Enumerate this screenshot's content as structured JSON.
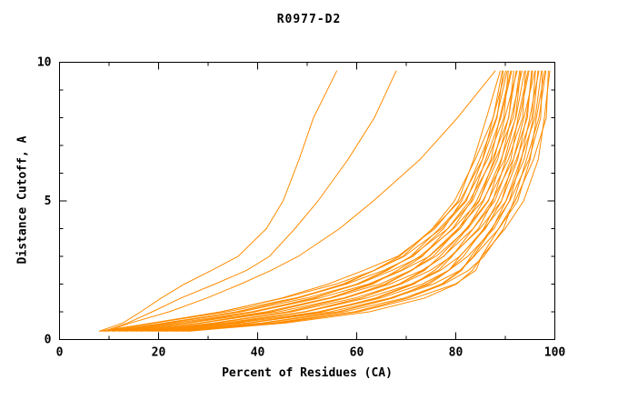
{
  "header": {
    "title": "R0977-D2"
  },
  "chart_data": {
    "type": "line",
    "title": "R0977-D2",
    "xlabel": "Percent of Residues (CA)",
    "ylabel": "Distance Cutoff, A",
    "xlim": [
      0,
      100
    ],
    "ylim": [
      0,
      10
    ],
    "x_major_ticks": [
      0,
      20,
      40,
      60,
      80,
      100
    ],
    "x_minor_ticks": [
      10,
      30,
      50,
      70,
      90
    ],
    "y_major_ticks": [
      0,
      5,
      10
    ],
    "y_minor_ticks": [
      1,
      2,
      3,
      4,
      6,
      7,
      8,
      9
    ],
    "grid": false,
    "legend_position": "none",
    "line_color": "#ff8c00",
    "frame_color": "#000000",
    "y_samples": [
      0.3,
      0.6,
      1.0,
      1.5,
      2.0,
      2.5,
      3.0,
      4.0,
      5.0,
      6.5,
      8.0,
      9.7
    ],
    "series_x": [
      [
        8.0,
        18.0,
        32.0,
        45.0,
        55.0,
        62.0,
        68.0,
        75.0,
        80.0,
        84.0,
        87.0,
        89.0
      ],
      [
        8.5,
        19.1,
        33.2,
        46.0,
        55.8,
        62.9,
        68.7,
        75.4,
        80.5,
        84.5,
        87.3,
        89.4
      ],
      [
        9.2,
        20.0,
        34.0,
        47.1,
        56.8,
        63.4,
        69.3,
        76.1,
        80.8,
        84.7,
        87.7,
        89.6
      ],
      [
        9.8,
        20.8,
        35.2,
        47.8,
        57.7,
        64.4,
        69.8,
        76.5,
        81.4,
        85.3,
        88.2,
        90.1
      ],
      [
        10.6,
        21.8,
        36.0,
        49.0,
        58.3,
        65.1,
        70.6,
        77.2,
        81.7,
        85.6,
        88.4,
        90.4
      ],
      [
        11.0,
        22.9,
        37.3,
        49.7,
        59.4,
        65.7,
        71.2,
        77.5,
        82.3,
        86.0,
        88.9,
        90.6
      ],
      [
        11.8,
        23.7,
        38.1,
        50.9,
        60.1,
        66.7,
        71.6,
        78.2,
        82.6,
        86.6,
        89.2,
        91.1
      ],
      [
        12.4,
        24.7,
        39.3,
        51.7,
        61.1,
        67.2,
        72.4,
        78.7,
        83.2,
        86.8,
        89.7,
        91.3
      ],
      [
        13.1,
        25.8,
        40.2,
        52.8,
        61.8,
        68.2,
        73.1,
        79.0,
        83.5,
        87.4,
        90.0,
        91.7
      ],
      [
        13.5,
        26.6,
        41.4,
        53.6,
        62.9,
        68.7,
        73.5,
        79.8,
        84.1,
        87.7,
        90.5,
        92.2
      ],
      [
        14.3,
        27.6,
        42.2,
        54.8,
        63.5,
        69.7,
        74.3,
        80.1,
        84.4,
        88.2,
        90.7,
        92.4
      ],
      [
        14.9,
        28.7,
        43.5,
        55.5,
        64.6,
        70.2,
        74.9,
        80.8,
        85.0,
        88.5,
        91.2,
        92.9
      ],
      [
        15.5,
        29.5,
        44.3,
        56.7,
        65.2,
        71.2,
        75.3,
        81.1,
        85.3,
        89.1,
        91.5,
        93.1
      ],
      [
        16.2,
        30.7,
        45.5,
        57.5,
        66.3,
        71.8,
        76.1,
        81.8,
        85.9,
        89.3,
        91.9,
        93.4
      ],
      [
        16.6,
        31.4,
        46.4,
        58.6,
        67.0,
        72.7,
        76.8,
        82.1,
        86.2,
        89.9,
        92.2,
        93.9
      ],
      [
        17.4,
        32.6,
        47.4,
        59.4,
        67.8,
        73.3,
        77.2,
        82.9,
        86.8,
        90.1,
        92.7,
        94.1
      ],
      [
        18.0,
        33.3,
        48.7,
        60.3,
        68.7,
        74.2,
        78.0,
        83.2,
        87.1,
        90.7,
        93.0,
        94.6
      ],
      [
        18.6,
        34.5,
        49.5,
        61.5,
        69.6,
        74.8,
        78.4,
        84.0,
        87.7,
        90.9,
        93.4,
        94.8
      ],
      [
        19.3,
        35.3,
        50.5,
        62.2,
        70.4,
        75.8,
        79.2,
        84.2,
        88.0,
        91.5,
        93.7,
        95.3
      ],
      [
        19.9,
        36.4,
        51.8,
        63.4,
        71.3,
        76.3,
        79.7,
        85.0,
        88.6,
        91.8,
        94.2,
        95.5
      ],
      [
        20.5,
        37.2,
        52.6,
        64.1,
        72.1,
        77.3,
        80.3,
        85.2,
        89.0,
        92.2,
        94.5,
        96.0
      ],
      [
        21.2,
        38.4,
        53.8,
        65.4,
        73.0,
        77.8,
        81.1,
        86.0,
        89.3,
        92.6,
        94.9,
        96.1
      ],
      [
        21.6,
        39.1,
        54.7,
        66.0,
        74.0,
        78.8,
        81.6,
        86.3,
        89.9,
        93.0,
        95.2,
        96.6
      ],
      [
        22.4,
        40.3,
        55.7,
        67.3,
        74.7,
        79.3,
        82.4,
        87.0,
        90.2,
        93.4,
        95.7,
        96.8
      ],
      [
        23.0,
        41.0,
        56.7,
        67.9,
        75.7,
        80.3,
        82.8,
        87.3,
        90.8,
        93.8,
        96.0,
        97.3
      ],
      [
        23.6,
        42.2,
        57.9,
        69.2,
        76.5,
        80.9,
        83.6,
        88.0,
        91.1,
        94.2,
        96.4,
        97.5
      ],
      [
        24.3,
        42.9,
        58.8,
        69.8,
        77.4,
        81.8,
        84.1,
        88.3,
        91.7,
        94.7,
        96.8,
        98.0
      ],
      [
        24.9,
        44.1,
        59.8,
        71.1,
        78.2,
        82.4,
        84.9,
        89.1,
        92.0,
        95.1,
        97.2,
        98.2
      ],
      [
        25.6,
        44.8,
        61.1,
        71.7,
        79.2,
        83.4,
        85.3,
        89.4,
        92.6,
        95.5,
        97.5,
        98.7
      ],
      [
        26.0,
        46.0,
        62.0,
        73.0,
        80.0,
        84.0,
        86.0,
        90.0,
        93.0,
        96.0,
        98.0,
        99.0
      ],
      [
        8.0,
        12.0,
        16.0,
        21.0,
        26.0,
        31.0,
        35.5,
        41.0,
        45.0,
        49.0,
        52.0,
        56.0
      ],
      [
        9.0,
        14.0,
        19.5,
        25.0,
        31.0,
        37.0,
        42.0,
        48.0,
        53.0,
        58.5,
        63.0,
        68.0
      ],
      [
        9.5,
        15.0,
        22.0,
        29.0,
        36.0,
        43.0,
        49.0,
        57.0,
        63.0,
        72.0,
        80.0,
        88.0
      ]
    ]
  }
}
